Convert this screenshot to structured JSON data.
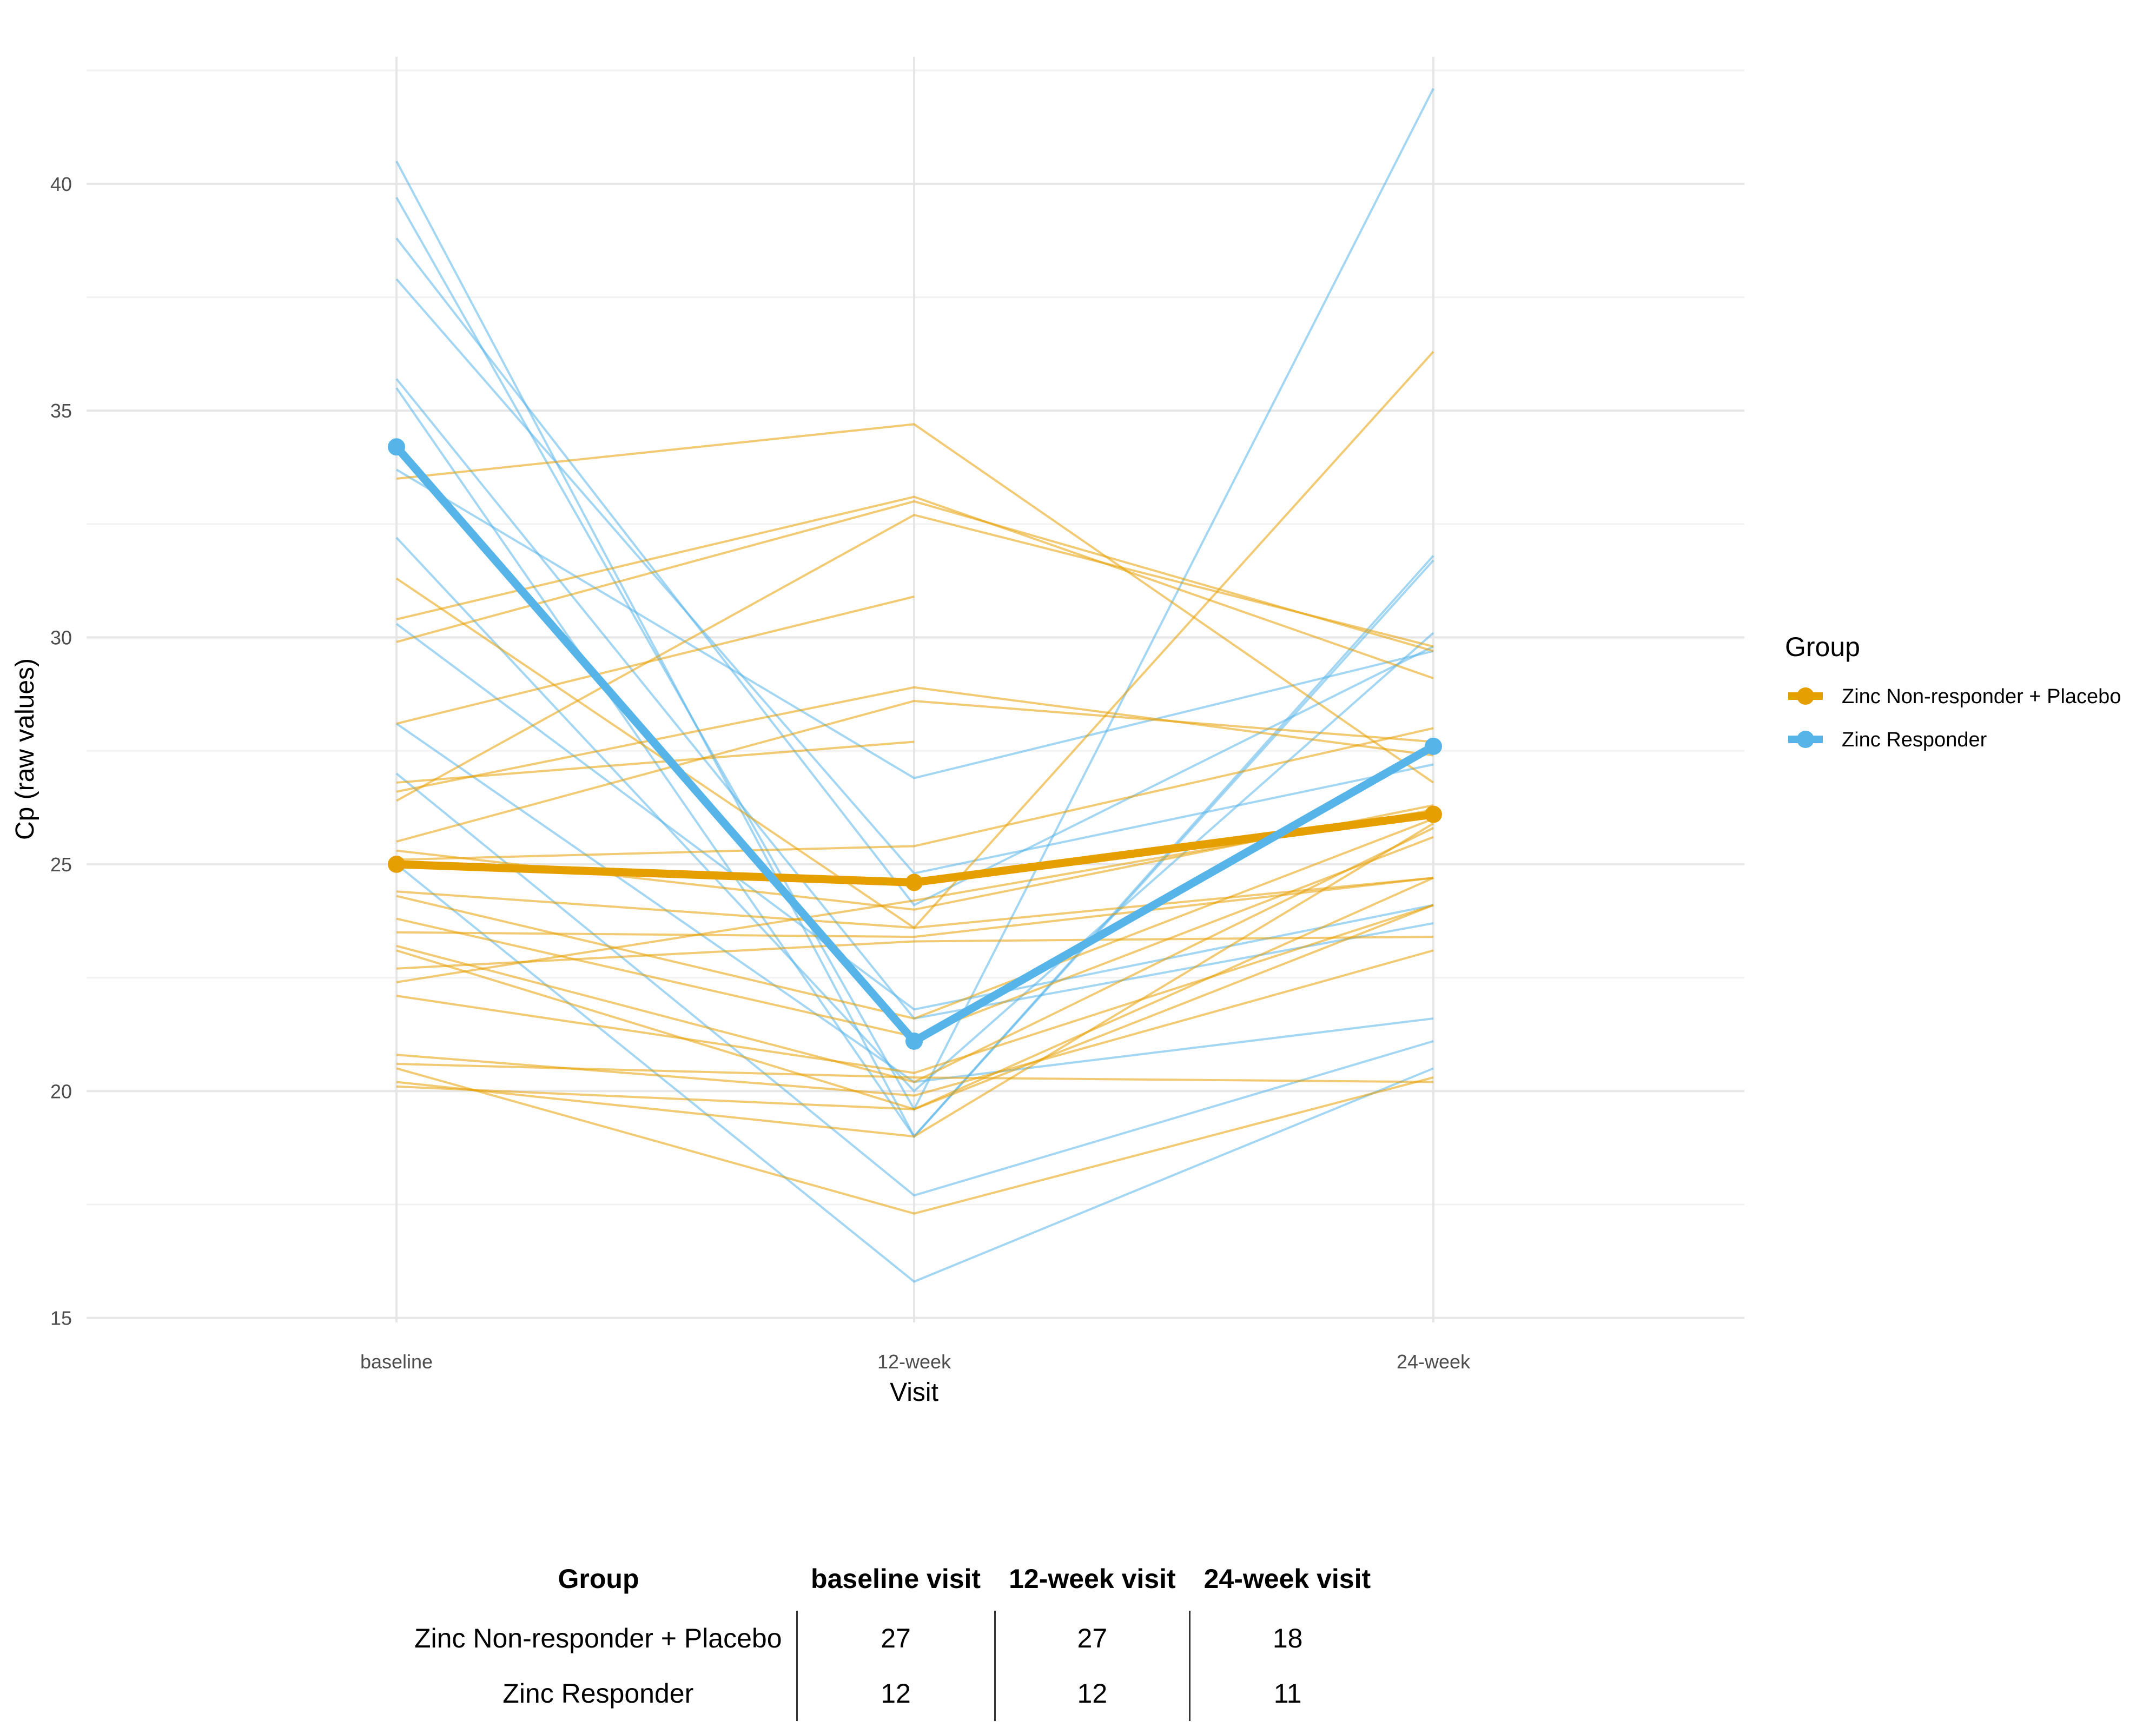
{
  "chart_data": {
    "type": "line",
    "xlabel": "Visit",
    "ylabel": "Cp (raw values)",
    "ylim": [
      14.9,
      42.8
    ],
    "yticks": [
      15,
      20,
      25,
      30,
      35,
      40
    ],
    "categories": [
      "baseline",
      "12-week",
      "24-week"
    ],
    "legend": {
      "title": "Group",
      "position": "right",
      "entries": [
        "Zinc Non-responder + Placebo",
        "Zinc Responder"
      ]
    },
    "colors": {
      "nonresponder": "#E69F00",
      "responder": "#56B4E9"
    },
    "series": [
      {
        "name": "Zinc Non-responder + Placebo",
        "role": "mean",
        "values": [
          25.0,
          24.6,
          26.1
        ]
      },
      {
        "name": "Zinc Responder",
        "role": "mean",
        "values": [
          34.2,
          21.1,
          27.6
        ]
      }
    ],
    "individual_lines": {
      "Zinc Responder": [
        [
          40.5,
          19.0,
          31.7
        ],
        [
          39.7,
          19.6,
          42.1
        ],
        [
          38.8,
          24.1,
          29.8
        ],
        [
          37.9,
          24.8,
          27.2
        ],
        [
          35.7,
          21.6,
          23.7
        ],
        [
          35.5,
          19.0,
          31.8
        ],
        [
          33.7,
          26.9,
          29.7
        ],
        [
          32.2,
          20.0,
          30.1
        ],
        [
          30.3,
          21.8,
          24.1
        ],
        [
          28.1,
          20.2,
          21.6
        ],
        [
          27.0,
          17.7,
          21.1
        ],
        [
          25.0,
          15.8,
          20.5
        ]
      ],
      "Zinc Non-responder + Placebo": [
        [
          33.5,
          34.7,
          26.8
        ],
        [
          31.3,
          23.6,
          36.3
        ],
        [
          30.4,
          33.1,
          29.1
        ],
        [
          29.9,
          33.0,
          29.7
        ],
        [
          28.1,
          30.9
        ],
        [
          26.8,
          27.7
        ],
        [
          26.6,
          28.9,
          27.4
        ],
        [
          26.4,
          32.7,
          29.8
        ],
        [
          25.5,
          28.6,
          27.7
        ],
        [
          25.3,
          24.0,
          26.3
        ],
        [
          25.1,
          25.4,
          28.0
        ],
        [
          24.4,
          23.6,
          24.7
        ],
        [
          24.3,
          21.6,
          26.0
        ],
        [
          23.8,
          21.2,
          25.6
        ],
        [
          23.5,
          23.4,
          24.7
        ],
        [
          23.2,
          20.2,
          25.8
        ],
        [
          23.1,
          19.6,
          24.1
        ],
        [
          22.7,
          23.3,
          23.4
        ],
        [
          22.4,
          24.2,
          26.2
        ],
        [
          22.1,
          20.4,
          24.1
        ],
        [
          20.8,
          19.9,
          23.1
        ],
        [
          20.6,
          20.3,
          20.2
        ],
        [
          20.5,
          17.3,
          20.3
        ],
        [
          20.2,
          19.0,
          25.9
        ],
        [
          20.1,
          19.6,
          24.7
        ]
      ]
    }
  },
  "table": {
    "headers": [
      "Group",
      "baseline visit",
      "12-week visit",
      "24-week visit"
    ],
    "rows": [
      {
        "group": "Zinc Non-responder + Placebo",
        "baseline": "27",
        "week12": "27",
        "week24": "18"
      },
      {
        "group": "Zinc Responder",
        "baseline": "12",
        "week12": "12",
        "week24": "11"
      }
    ]
  }
}
